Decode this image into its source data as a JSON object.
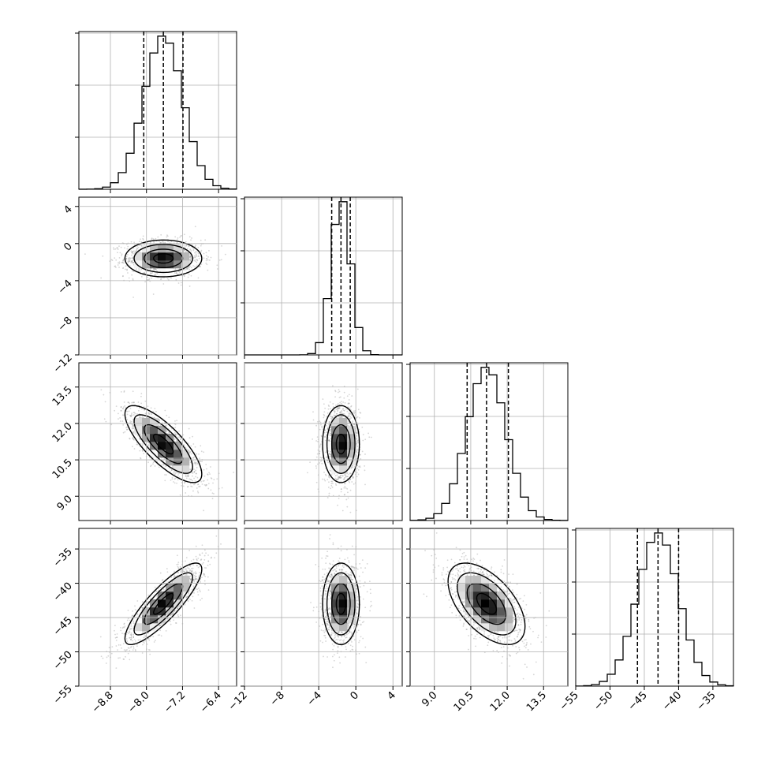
{
  "chart_data": {
    "type": "corner",
    "grid": true,
    "parameters": [
      {
        "range": [
          -9.5,
          -6.0
        ],
        "mean": -7.625,
        "sd": 0.43,
        "quantiles": [
          -8.06,
          -7.625,
          -7.19
        ],
        "ticks": [
          -8.8,
          -8.0,
          -7.2,
          -6.4
        ],
        "tick_labels": [
          "−8.8",
          "−8.0",
          "−7.2",
          "−6.4"
        ]
      },
      {
        "range": [
          -12.0,
          5.0
        ],
        "mean": -1.6,
        "sd": 1.0,
        "quantiles": [
          -2.6,
          -1.6,
          -0.6
        ],
        "ticks": [
          -12,
          -8,
          -4,
          0,
          4
        ],
        "tick_labels": [
          "−12",
          "−8",
          "−4",
          "0",
          "4"
        ]
      },
      {
        "range": [
          8.0,
          14.5
        ],
        "mean": 11.15,
        "sd": 0.8,
        "quantiles": [
          10.35,
          11.15,
          12.05
        ],
        "ticks": [
          9.0,
          10.5,
          12.0,
          13.5
        ],
        "tick_labels": [
          "9.0",
          "10.5",
          "12.0",
          "13.5"
        ]
      },
      {
        "range": [
          -55.0,
          -32.0
        ],
        "mean": -43.0,
        "sd": 3.0,
        "quantiles": [
          -46.0,
          -43.0,
          -40.0
        ],
        "ticks": [
          -55,
          -50,
          -45,
          -40,
          -35
        ],
        "tick_labels": [
          "−55",
          "−50",
          "−45",
          "−40",
          "−35"
        ]
      }
    ],
    "correlations": {
      "1-0": 0.0,
      "2-0": -0.78,
      "2-1": 0.0,
      "3-0": 0.85,
      "3-1": 0.0,
      "3-2": -0.55
    },
    "histogram_bins": 20,
    "contour_levels": [
      0.12,
      0.39,
      0.68,
      0.86
    ]
  }
}
